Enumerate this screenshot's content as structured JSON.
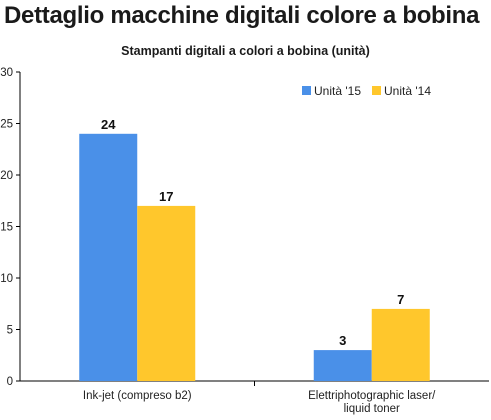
{
  "header": {
    "title": "Dettaglio macchine digitali colore a bobina"
  },
  "colors": {
    "series_2015": "#4a90e8",
    "series_2014": "#ffc72c",
    "axis": "#000000"
  },
  "chart_data": {
    "type": "bar",
    "title": "Stampanti digitali a colori a bobina (unità)",
    "xlabel": "",
    "ylabel": "",
    "ylim": [
      0,
      30
    ],
    "yticks": [
      0,
      5,
      10,
      15,
      20,
      25,
      30
    ],
    "grid": false,
    "legend_position": "top-right",
    "categories": [
      [
        "Ink-jet (compreso b2)"
      ],
      [
        "Elettriphotographic laser/",
        "liquid toner"
      ]
    ],
    "series": [
      {
        "name": "Unità '15",
        "values": [
          24,
          3
        ]
      },
      {
        "name": "Unità '14",
        "values": [
          17,
          7
        ]
      }
    ]
  }
}
